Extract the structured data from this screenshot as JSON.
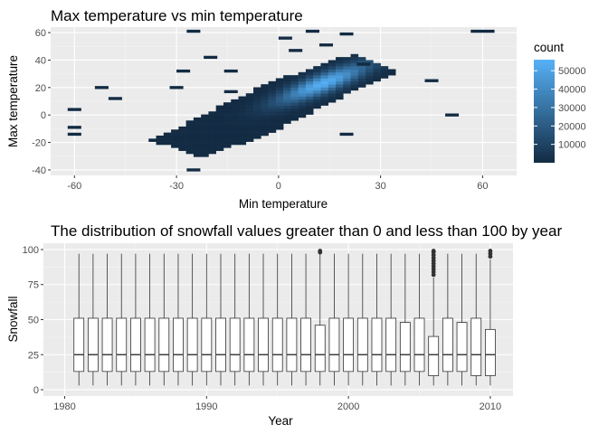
{
  "chart_data": [
    {
      "type": "heatmap",
      "title": "Max temperature vs min temperature",
      "xlabel": "Min temperature",
      "ylabel": "Max temperature",
      "xlim": [
        -67,
        70
      ],
      "ylim": [
        -44,
        64
      ],
      "xticks": [
        -60,
        -30,
        0,
        30,
        60
      ],
      "yticks": [
        -40,
        -20,
        0,
        20,
        40,
        60
      ],
      "grid": true,
      "legend": {
        "title": "count",
        "position": "right",
        "breaks": [
          10000,
          20000,
          30000,
          40000,
          50000
        ],
        "range": [
          1,
          56000
        ],
        "low_color": "#132B43",
        "high_color": "#56B1F7"
      },
      "density_model": {
        "description": "2D binned counts of (min temperature, max temperature); dense ridge along a line of slope ~1.1 through (0, 8), peak near (12, 22).",
        "peak_count": 55000,
        "center": [
          12,
          22
        ]
      },
      "outlier_bins": [
        [
          -60,
          4
        ],
        [
          -60,
          -9
        ],
        [
          -60,
          -14
        ],
        [
          -52,
          20
        ],
        [
          -48,
          12
        ],
        [
          -30,
          20
        ],
        [
          -28,
          32
        ],
        [
          -25,
          -40
        ],
        [
          -25,
          61
        ],
        [
          -20,
          42
        ],
        [
          -14,
          32
        ],
        [
          -14,
          17
        ],
        [
          2,
          56
        ],
        [
          5,
          47
        ],
        [
          10,
          61
        ],
        [
          14,
          51
        ],
        [
          20,
          59
        ],
        [
          25,
          37
        ],
        [
          20,
          -14
        ],
        [
          45,
          25
        ],
        [
          51,
          0
        ],
        [
          60,
          61
        ]
      ]
    },
    {
      "type": "boxplot",
      "title": "The distribution of snowfall values greater than 0 and less than 100 by year",
      "xlabel": "Year",
      "ylabel": "Snowfall",
      "xlim": [
        1978.5,
        2011.6
      ],
      "ylim": [
        0,
        100
      ],
      "xticks": [
        1980,
        1990,
        2000,
        2010
      ],
      "yticks": [
        0,
        25,
        50,
        75,
        100
      ],
      "grid": true,
      "boxes": [
        {
          "year": 1981,
          "min": 3,
          "q1": 13,
          "median": 25,
          "q3": 51,
          "max": 97
        },
        {
          "year": 1982,
          "min": 3,
          "q1": 13,
          "median": 25,
          "q3": 51,
          "max": 97
        },
        {
          "year": 1983,
          "min": 3,
          "q1": 13,
          "median": 25,
          "q3": 51,
          "max": 97
        },
        {
          "year": 1984,
          "min": 3,
          "q1": 13,
          "median": 25,
          "q3": 51,
          "max": 97
        },
        {
          "year": 1985,
          "min": 3,
          "q1": 13,
          "median": 25,
          "q3": 51,
          "max": 97
        },
        {
          "year": 1986,
          "min": 3,
          "q1": 13,
          "median": 25,
          "q3": 51,
          "max": 97
        },
        {
          "year": 1987,
          "min": 3,
          "q1": 13,
          "median": 25,
          "q3": 51,
          "max": 97
        },
        {
          "year": 1988,
          "min": 3,
          "q1": 13,
          "median": 25,
          "q3": 51,
          "max": 97
        },
        {
          "year": 1989,
          "min": 3,
          "q1": 13,
          "median": 25,
          "q3": 51,
          "max": 97
        },
        {
          "year": 1990,
          "min": 3,
          "q1": 13,
          "median": 25,
          "q3": 51,
          "max": 97
        },
        {
          "year": 1991,
          "min": 3,
          "q1": 13,
          "median": 25,
          "q3": 51,
          "max": 97
        },
        {
          "year": 1992,
          "min": 3,
          "q1": 13,
          "median": 25,
          "q3": 51,
          "max": 97
        },
        {
          "year": 1993,
          "min": 3,
          "q1": 13,
          "median": 25,
          "q3": 51,
          "max": 97
        },
        {
          "year": 1994,
          "min": 3,
          "q1": 13,
          "median": 25,
          "q3": 51,
          "max": 97
        },
        {
          "year": 1995,
          "min": 3,
          "q1": 13,
          "median": 25,
          "q3": 51,
          "max": 97
        },
        {
          "year": 1996,
          "min": 3,
          "q1": 13,
          "median": 25,
          "q3": 51,
          "max": 97
        },
        {
          "year": 1997,
          "min": 3,
          "q1": 13,
          "median": 25,
          "q3": 51,
          "max": 97
        },
        {
          "year": 1998,
          "min": 3,
          "q1": 13,
          "median": 25,
          "q3": 46,
          "max": 97,
          "outliers": [
            99,
            98
          ]
        },
        {
          "year": 1999,
          "min": 3,
          "q1": 13,
          "median": 25,
          "q3": 51,
          "max": 97
        },
        {
          "year": 2000,
          "min": 3,
          "q1": 13,
          "median": 25,
          "q3": 51,
          "max": 97
        },
        {
          "year": 2001,
          "min": 3,
          "q1": 13,
          "median": 25,
          "q3": 51,
          "max": 97
        },
        {
          "year": 2002,
          "min": 3,
          "q1": 13,
          "median": 25,
          "q3": 51,
          "max": 97
        },
        {
          "year": 2003,
          "min": 3,
          "q1": 13,
          "median": 25,
          "q3": 51,
          "max": 97
        },
        {
          "year": 2004,
          "min": 3,
          "q1": 13,
          "median": 25,
          "q3": 48,
          "max": 97
        },
        {
          "year": 2005,
          "min": 3,
          "q1": 13,
          "median": 25,
          "q3": 51,
          "max": 97
        },
        {
          "year": 2006,
          "min": 3,
          "q1": 10,
          "median": 25,
          "q3": 38,
          "max": 80,
          "outliers": [
            82,
            84,
            86,
            88,
            90,
            92,
            94,
            96,
            98,
            99
          ]
        },
        {
          "year": 2007,
          "min": 3,
          "q1": 13,
          "median": 25,
          "q3": 51,
          "max": 97
        },
        {
          "year": 2008,
          "min": 3,
          "q1": 13,
          "median": 25,
          "q3": 48,
          "max": 97
        },
        {
          "year": 2009,
          "min": 3,
          "q1": 10,
          "median": 25,
          "q3": 51,
          "max": 97
        },
        {
          "year": 2010,
          "min": 3,
          "q1": 10,
          "median": 25,
          "q3": 43,
          "max": 93,
          "outliers": [
            95,
            97,
            99
          ]
        }
      ]
    }
  ]
}
